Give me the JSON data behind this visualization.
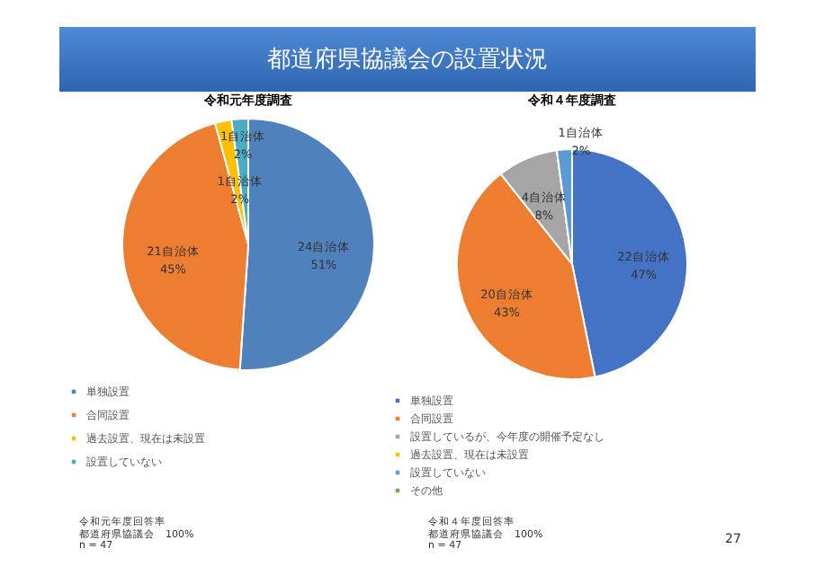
{
  "chart_data": [
    {
      "type": "pie",
      "title": "都道府県協議会の設置状況",
      "subtitle": "令和元年度調査",
      "categories": [
        "単独設置",
        "合同設置",
        "過去設置、現在は未設置",
        "設置していない"
      ],
      "values": [
        24,
        21,
        1,
        1
      ],
      "colors": [
        "#4f81bd",
        "#ed7d31",
        "#ffc000",
        "#4bacc6"
      ],
      "value_labels": [
        "24自治体\n51%",
        "21自治体\n45%",
        "1自治体\n2%",
        "1自治体\n2%"
      ],
      "legend": "bottom",
      "annotations": [
        "令和元年度回答率",
        "都道府県協議会　100%",
        "n = 47"
      ]
    },
    {
      "type": "pie",
      "title": "令和４年度調査",
      "categories": [
        "単独設置",
        "合同設置",
        "設置しているが、今年度の開催予定なし",
        "過去設置、現在は未設置",
        "設置していない",
        "その他"
      ],
      "values": [
        22,
        20,
        4,
        0,
        1,
        0
      ],
      "colors": [
        "#4472c4",
        "#ed7d31",
        "#a5a5a5",
        "#ffc000",
        "#5b9bd5",
        "#70ad47"
      ],
      "value_labels": [
        "22自治体\n47%",
        "20自治体\n43%",
        "4自治体\n8%",
        null,
        "1自治体\n2%",
        null
      ],
      "legend": "bottom",
      "annotations": [
        "令和４年度回答率",
        "都道府県協議会　100%",
        "n = 47",
        "27"
      ]
    }
  ]
}
